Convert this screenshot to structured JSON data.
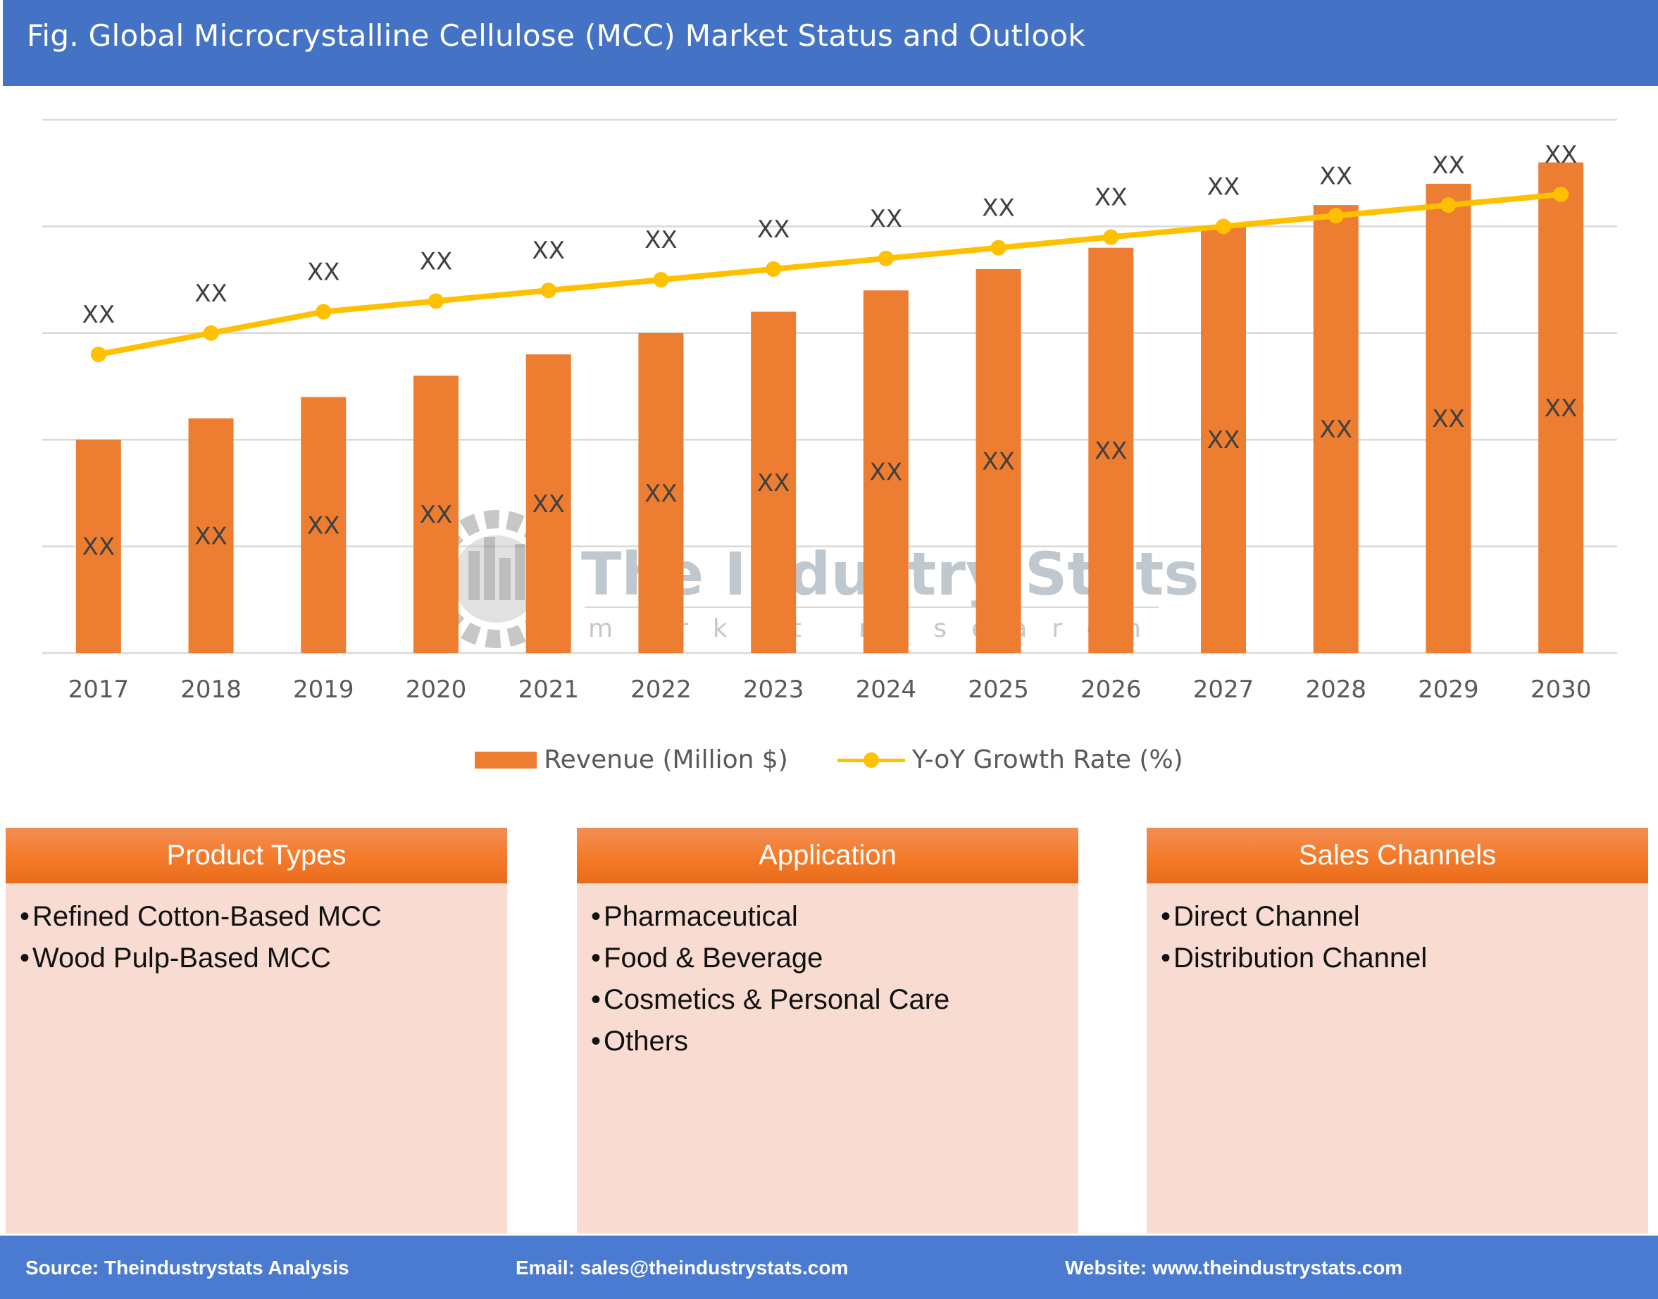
{
  "header": {
    "title": "Fig. Global Microcrystalline Cellulose (MCC) Market Status and Outlook"
  },
  "chart_data": {
    "type": "bar+line",
    "categories": [
      "2017",
      "2018",
      "2019",
      "2020",
      "2021",
      "2022",
      "2023",
      "2024",
      "2025",
      "2026",
      "2027",
      "2028",
      "2029",
      "2030"
    ],
    "series": [
      {
        "name": "Revenue (Million $)",
        "type": "bar",
        "color": "#ED7D31",
        "values": [
          40,
          44,
          48,
          52,
          56,
          60,
          64,
          68,
          72,
          76,
          80,
          84,
          88,
          92
        ],
        "labels": [
          "XX",
          "XX",
          "XX",
          "XX",
          "XX",
          "XX",
          "XX",
          "XX",
          "XX",
          "XX",
          "XX",
          "XX",
          "XX",
          "XX"
        ]
      },
      {
        "name": "Y-oY Growth Rate (%)",
        "type": "line",
        "color": "#FFC000",
        "values": [
          56,
          60,
          64,
          66,
          68,
          70,
          72,
          74,
          76,
          78,
          80,
          82,
          84,
          86
        ],
        "labels": [
          "XX",
          "XX",
          "XX",
          "XX",
          "XX",
          "XX",
          "XX",
          "XX",
          "XX",
          "XX",
          "XX",
          "XX",
          "XX",
          "XX"
        ]
      }
    ],
    "ylim": [
      0,
      100
    ],
    "grid": true,
    "legend": "bottom",
    "watermark": {
      "title": "The Industry Stats",
      "subtitle": "market research"
    }
  },
  "boxes": [
    {
      "title": "Product Types",
      "items": [
        "Refined Cotton-Based MCC",
        "Wood Pulp-Based MCC"
      ]
    },
    {
      "title": "Application",
      "items": [
        "Pharmaceutical",
        "Food & Beverage",
        "Cosmetics & Personal Care",
        "Others"
      ]
    },
    {
      "title": "Sales Channels",
      "items": [
        "Direct Channel",
        "Distribution Channel"
      ]
    }
  ],
  "footer": {
    "source": "Source: Theindustrystats Analysis",
    "email": "Email: sales@theindustrystats.com",
    "website": "Website: www.theindustrystats.com"
  }
}
